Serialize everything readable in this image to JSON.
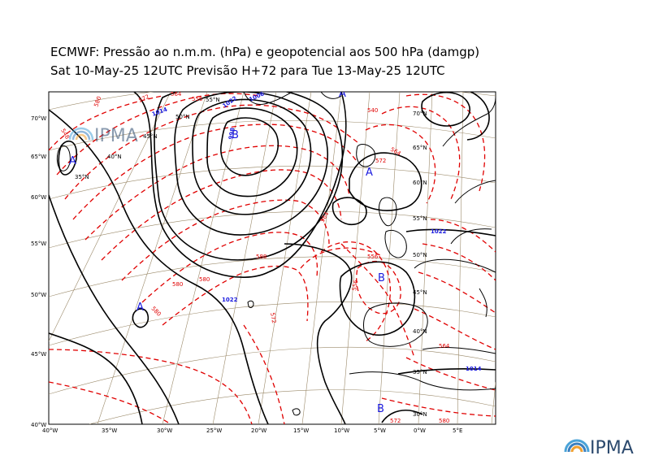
{
  "title": {
    "line1": "ECMWF:  Pressão ao n.m.m. (hPa) e geopotencial aos 500 hPa (damgp)",
    "line2": "Sat 10-May-25 12UTC Previsão H+72 para Tue 13-May-25 12UTC"
  },
  "logo": {
    "text": "IPMA"
  },
  "colors": {
    "mslp": "#000000",
    "geopotential": "#e00000",
    "labels": "#1a1adf",
    "graticule": "#9b8a6a"
  },
  "axes": {
    "y_labels": [
      "70°W",
      "65°W",
      "60°W",
      "55°W",
      "50°W",
      "45°W",
      "40°W"
    ],
    "x_labels": [
      "40°W",
      "35°W",
      "30°W",
      "25°W",
      "20°W",
      "15°W",
      "10°W",
      "5°W",
      "0°W",
      "5°E"
    ]
  },
  "graticule_labels": {
    "lat": [
      "70°N",
      "65°N",
      "60°N",
      "55°N",
      "50°N",
      "45°N",
      "40°N",
      "35°N",
      "30°N"
    ],
    "upper": [
      "55°N",
      "50°N",
      "45°N",
      "40°N",
      "35°N"
    ]
  },
  "pressure_centers": [
    {
      "type": "A",
      "label": "A"
    },
    {
      "type": "A",
      "label": "A"
    },
    {
      "type": "A",
      "label": "A"
    },
    {
      "type": "A",
      "label": "A"
    },
    {
      "type": "B",
      "label": "B"
    },
    {
      "type": "B",
      "label": "B"
    },
    {
      "type": "B",
      "label": "B"
    }
  ],
  "isobar_labels": [
    "1014",
    "1022",
    "1006",
    "998",
    "1022",
    "1014",
    "1022"
  ],
  "geopotential_labels": [
    "580",
    "572",
    "564",
    "556",
    "548",
    "540",
    "588",
    "564",
    "556",
    "572",
    "580",
    "580",
    "580",
    "564",
    "572",
    "580",
    "556",
    "564",
    "572"
  ]
}
